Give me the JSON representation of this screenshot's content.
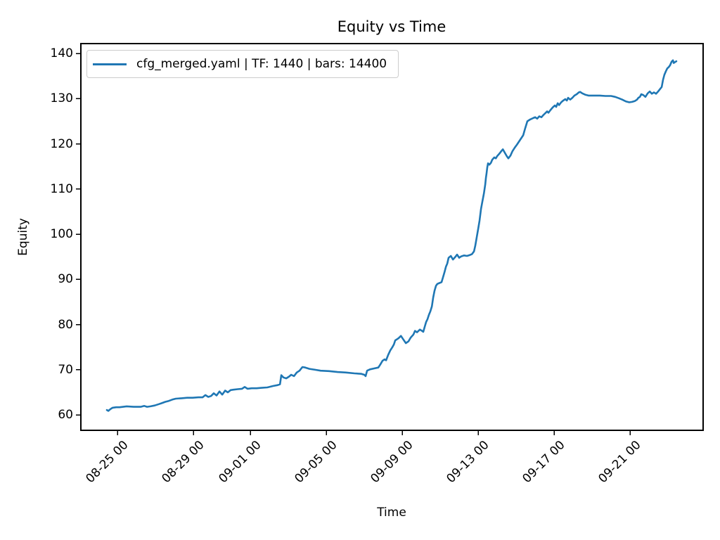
{
  "figure": {
    "title": "Equity vs Time",
    "xlabel": "Time",
    "ylabel": "Equity",
    "legend_label": "cfg_merged.yaml | TF: 1440 | bars: 14400"
  },
  "chart_data": {
    "type": "line",
    "title": "Equity vs Time",
    "xlabel": "Time",
    "ylabel": "Equity",
    "grid": false,
    "legend_position": "upper left",
    "legend_entries": [
      "cfg_merged.yaml | TF: 1440 | bars: 14400"
    ],
    "line_color": "#1f77b4",
    "x_axis_note": "x values are day offsets; 0 = 08-24 00:00",
    "xlim": [
      -0.93,
      31.85
    ],
    "ylim": [
      56.6,
      142.2
    ],
    "x_ticks": [
      {
        "x": 1,
        "label": "08-25 00"
      },
      {
        "x": 5,
        "label": "08-29 00"
      },
      {
        "x": 8,
        "label": "09-01 00"
      },
      {
        "x": 12,
        "label": "09-05 00"
      },
      {
        "x": 16,
        "label": "09-09 00"
      },
      {
        "x": 20,
        "label": "09-13 00"
      },
      {
        "x": 24,
        "label": "09-17 00"
      },
      {
        "x": 28,
        "label": "09-21 00"
      }
    ],
    "y_ticks": [
      60,
      70,
      80,
      90,
      100,
      110,
      120,
      130,
      140
    ],
    "series": [
      {
        "name": "cfg_merged.yaml | TF: 1440 | bars: 14400",
        "color": "#1f77b4",
        "points": [
          [
            0.44,
            61.1
          ],
          [
            0.52,
            60.9
          ],
          [
            0.63,
            61.3
          ],
          [
            0.74,
            61.6
          ],
          [
            0.93,
            61.7
          ],
          [
            1.11,
            61.7
          ],
          [
            1.48,
            61.9
          ],
          [
            1.85,
            61.8
          ],
          [
            2.22,
            61.8
          ],
          [
            2.41,
            62.0
          ],
          [
            2.56,
            61.8
          ],
          [
            2.74,
            61.9
          ],
          [
            2.96,
            62.1
          ],
          [
            3.19,
            62.4
          ],
          [
            3.33,
            62.6
          ],
          [
            3.52,
            62.9
          ],
          [
            3.7,
            63.1
          ],
          [
            3.89,
            63.4
          ],
          [
            4.07,
            63.6
          ],
          [
            4.37,
            63.7
          ],
          [
            4.67,
            63.8
          ],
          [
            4.96,
            63.8
          ],
          [
            5.26,
            63.9
          ],
          [
            5.48,
            63.9
          ],
          [
            5.63,
            64.4
          ],
          [
            5.78,
            64.0
          ],
          [
            5.93,
            64.2
          ],
          [
            6.07,
            64.8
          ],
          [
            6.22,
            64.3
          ],
          [
            6.37,
            65.2
          ],
          [
            6.52,
            64.5
          ],
          [
            6.67,
            65.4
          ],
          [
            6.81,
            65.0
          ],
          [
            6.96,
            65.5
          ],
          [
            7.11,
            65.6
          ],
          [
            7.33,
            65.7
          ],
          [
            7.56,
            65.8
          ],
          [
            7.7,
            66.2
          ],
          [
            7.85,
            65.8
          ],
          [
            8.07,
            65.9
          ],
          [
            8.33,
            65.9
          ],
          [
            8.59,
            66.0
          ],
          [
            8.89,
            66.1
          ],
          [
            9.19,
            66.4
          ],
          [
            9.44,
            66.6
          ],
          [
            9.56,
            66.8
          ],
          [
            9.63,
            68.8
          ],
          [
            9.74,
            68.3
          ],
          [
            9.89,
            68.1
          ],
          [
            10.04,
            68.5
          ],
          [
            10.15,
            68.9
          ],
          [
            10.3,
            68.6
          ],
          [
            10.44,
            69.4
          ],
          [
            10.59,
            69.8
          ],
          [
            10.74,
            70.6
          ],
          [
            10.89,
            70.5
          ],
          [
            11.11,
            70.2
          ],
          [
            11.41,
            70.0
          ],
          [
            11.7,
            69.8
          ],
          [
            12.15,
            69.7
          ],
          [
            12.59,
            69.5
          ],
          [
            13.04,
            69.4
          ],
          [
            13.48,
            69.2
          ],
          [
            13.85,
            69.1
          ],
          [
            14.0,
            68.9
          ],
          [
            14.07,
            68.6
          ],
          [
            14.15,
            69.8
          ],
          [
            14.3,
            70.1
          ],
          [
            14.52,
            70.3
          ],
          [
            14.74,
            70.5
          ],
          [
            14.85,
            71.2
          ],
          [
            14.96,
            72.0
          ],
          [
            15.07,
            72.3
          ],
          [
            15.15,
            72.1
          ],
          [
            15.26,
            73.3
          ],
          [
            15.37,
            74.3
          ],
          [
            15.48,
            75.0
          ],
          [
            15.56,
            75.6
          ],
          [
            15.63,
            76.5
          ],
          [
            15.74,
            76.8
          ],
          [
            15.81,
            77.0
          ],
          [
            15.93,
            77.5
          ],
          [
            16.04,
            76.8
          ],
          [
            16.19,
            75.9
          ],
          [
            16.33,
            76.3
          ],
          [
            16.44,
            77.1
          ],
          [
            16.59,
            77.8
          ],
          [
            16.67,
            78.6
          ],
          [
            16.78,
            78.3
          ],
          [
            16.93,
            78.9
          ],
          [
            17.04,
            78.6
          ],
          [
            17.11,
            78.4
          ],
          [
            17.19,
            79.6
          ],
          [
            17.26,
            80.6
          ],
          [
            17.33,
            81.2
          ],
          [
            17.41,
            82.2
          ],
          [
            17.48,
            82.9
          ],
          [
            17.56,
            84.0
          ],
          [
            17.63,
            86.0
          ],
          [
            17.7,
            87.5
          ],
          [
            17.78,
            88.6
          ],
          [
            17.85,
            89.0
          ],
          [
            17.96,
            89.2
          ],
          [
            18.07,
            89.4
          ],
          [
            18.15,
            90.5
          ],
          [
            18.22,
            91.5
          ],
          [
            18.3,
            92.8
          ],
          [
            18.37,
            93.5
          ],
          [
            18.44,
            94.8
          ],
          [
            18.56,
            95.2
          ],
          [
            18.67,
            94.4
          ],
          [
            18.78,
            94.9
          ],
          [
            18.89,
            95.5
          ],
          [
            19.0,
            94.8
          ],
          [
            19.11,
            95.1
          ],
          [
            19.26,
            95.3
          ],
          [
            19.41,
            95.2
          ],
          [
            19.56,
            95.4
          ],
          [
            19.67,
            95.6
          ],
          [
            19.78,
            96.2
          ],
          [
            19.85,
            97.5
          ],
          [
            19.93,
            99.5
          ],
          [
            20.0,
            101.2
          ],
          [
            20.07,
            103.0
          ],
          [
            20.15,
            105.6
          ],
          [
            20.22,
            107.2
          ],
          [
            20.3,
            109.0
          ],
          [
            20.37,
            111.0
          ],
          [
            20.41,
            112.5
          ],
          [
            20.44,
            113.5
          ],
          [
            20.48,
            114.8
          ],
          [
            20.52,
            115.7
          ],
          [
            20.59,
            115.4
          ],
          [
            20.67,
            115.8
          ],
          [
            20.74,
            116.5
          ],
          [
            20.85,
            117.0
          ],
          [
            20.93,
            116.8
          ],
          [
            21.0,
            117.3
          ],
          [
            21.11,
            117.8
          ],
          [
            21.22,
            118.4
          ],
          [
            21.3,
            118.8
          ],
          [
            21.41,
            118.0
          ],
          [
            21.52,
            117.2
          ],
          [
            21.59,
            116.8
          ],
          [
            21.7,
            117.4
          ],
          [
            21.81,
            118.4
          ],
          [
            21.93,
            119.2
          ],
          [
            22.04,
            119.8
          ],
          [
            22.15,
            120.5
          ],
          [
            22.26,
            121.2
          ],
          [
            22.37,
            121.9
          ],
          [
            22.48,
            123.5
          ],
          [
            22.59,
            125.0
          ],
          [
            22.74,
            125.4
          ],
          [
            22.89,
            125.7
          ],
          [
            23.0,
            125.9
          ],
          [
            23.11,
            125.6
          ],
          [
            23.22,
            126.1
          ],
          [
            23.33,
            125.9
          ],
          [
            23.44,
            126.4
          ],
          [
            23.56,
            126.9
          ],
          [
            23.63,
            127.2
          ],
          [
            23.7,
            126.9
          ],
          [
            23.81,
            127.5
          ],
          [
            23.93,
            128.1
          ],
          [
            24.04,
            128.5
          ],
          [
            24.11,
            128.2
          ],
          [
            24.19,
            129.0
          ],
          [
            24.26,
            128.6
          ],
          [
            24.37,
            129.2
          ],
          [
            24.48,
            129.6
          ],
          [
            24.59,
            129.9
          ],
          [
            24.67,
            129.6
          ],
          [
            24.74,
            130.2
          ],
          [
            24.85,
            129.8
          ],
          [
            24.96,
            130.2
          ],
          [
            25.07,
            130.7
          ],
          [
            25.19,
            131.0
          ],
          [
            25.3,
            131.4
          ],
          [
            25.37,
            131.5
          ],
          [
            25.48,
            131.2
          ],
          [
            25.63,
            130.9
          ],
          [
            25.81,
            130.7
          ],
          [
            26.11,
            130.7
          ],
          [
            26.41,
            130.7
          ],
          [
            26.7,
            130.6
          ],
          [
            27.0,
            130.6
          ],
          [
            27.22,
            130.4
          ],
          [
            27.41,
            130.1
          ],
          [
            27.59,
            129.8
          ],
          [
            27.78,
            129.4
          ],
          [
            27.96,
            129.2
          ],
          [
            28.11,
            129.3
          ],
          [
            28.26,
            129.5
          ],
          [
            28.37,
            129.8
          ],
          [
            28.44,
            130.2
          ],
          [
            28.52,
            130.4
          ],
          [
            28.59,
            131.0
          ],
          [
            28.7,
            130.8
          ],
          [
            28.81,
            130.4
          ],
          [
            28.93,
            131.2
          ],
          [
            29.04,
            131.6
          ],
          [
            29.15,
            131.1
          ],
          [
            29.26,
            131.4
          ],
          [
            29.37,
            131.1
          ],
          [
            29.48,
            131.6
          ],
          [
            29.59,
            132.2
          ],
          [
            29.67,
            132.6
          ],
          [
            29.74,
            134.2
          ],
          [
            29.81,
            135.3
          ],
          [
            29.89,
            136.1
          ],
          [
            29.96,
            136.7
          ],
          [
            30.04,
            137.0
          ],
          [
            30.11,
            137.4
          ],
          [
            30.19,
            138.2
          ],
          [
            30.26,
            138.5
          ],
          [
            30.3,
            137.9
          ],
          [
            30.37,
            138.1
          ],
          [
            30.44,
            138.3
          ]
        ]
      }
    ]
  }
}
